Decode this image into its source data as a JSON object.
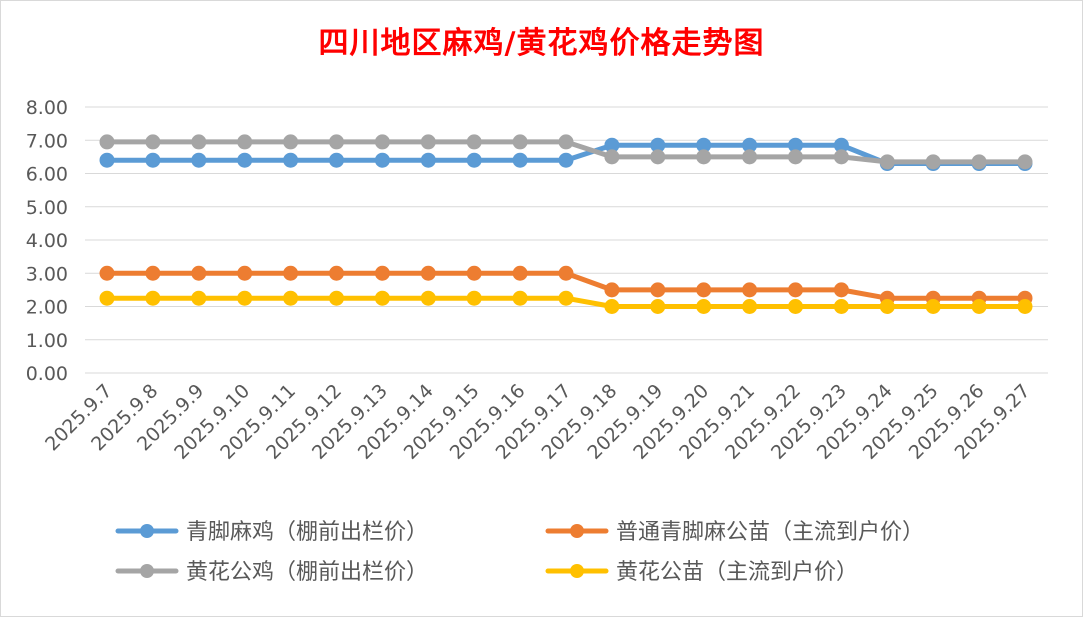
{
  "chart_data": {
    "type": "line",
    "title": "四川地区麻鸡/黄花鸡价格走势图",
    "xlabel": "",
    "ylabel": "",
    "ylim": [
      0,
      8
    ],
    "yticks": [
      "0.00",
      "1.00",
      "2.00",
      "3.00",
      "4.00",
      "5.00",
      "6.00",
      "7.00",
      "8.00"
    ],
    "grid": true,
    "legend_position": "bottom",
    "x": [
      "2025.9.7",
      "2025.9.8",
      "2025.9.9",
      "2025.9.10",
      "2025.9.11",
      "2025.9.12",
      "2025.9.13",
      "2025.9.14",
      "2025.9.15",
      "2025.9.16",
      "2025.9.17",
      "2025.9.18",
      "2025.9.19",
      "2025.9.20",
      "2025.9.21",
      "2025.9.22",
      "2025.9.23",
      "2025.9.24",
      "2025.9.25",
      "2025.9.26",
      "2025.9.27"
    ],
    "series": [
      {
        "name": "青脚麻鸡（棚前出栏价）",
        "color": "#5b9bd5",
        "values": [
          6.4,
          6.4,
          6.4,
          6.4,
          6.4,
          6.4,
          6.4,
          6.4,
          6.4,
          6.4,
          6.4,
          6.85,
          6.85,
          6.85,
          6.85,
          6.85,
          6.85,
          6.3,
          6.3,
          6.3,
          6.3
        ]
      },
      {
        "name": "普通青脚麻公苗（主流到户价）",
        "color": "#ed7d31",
        "values": [
          3.0,
          3.0,
          3.0,
          3.0,
          3.0,
          3.0,
          3.0,
          3.0,
          3.0,
          3.0,
          3.0,
          2.5,
          2.5,
          2.5,
          2.5,
          2.5,
          2.5,
          2.25,
          2.25,
          2.25,
          2.25
        ]
      },
      {
        "name": "黄花公鸡（棚前出栏价）",
        "color": "#a5a5a5",
        "values": [
          6.95,
          6.95,
          6.95,
          6.95,
          6.95,
          6.95,
          6.95,
          6.95,
          6.95,
          6.95,
          6.95,
          6.5,
          6.5,
          6.5,
          6.5,
          6.5,
          6.5,
          6.35,
          6.35,
          6.35,
          6.35
        ]
      },
      {
        "name": "黄花公苗（主流到户价）",
        "color": "#ffc000",
        "values": [
          2.25,
          2.25,
          2.25,
          2.25,
          2.25,
          2.25,
          2.25,
          2.25,
          2.25,
          2.25,
          2.25,
          2.0,
          2.0,
          2.0,
          2.0,
          2.0,
          2.0,
          2.0,
          2.0,
          2.0,
          2.0
        ]
      }
    ]
  }
}
